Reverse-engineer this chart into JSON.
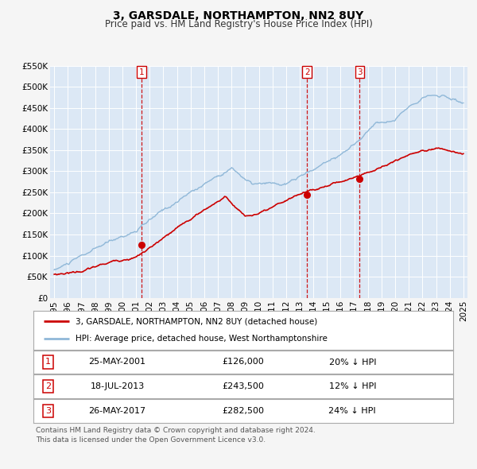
{
  "title": "3, GARSDALE, NORTHAMPTON, NN2 8UY",
  "subtitle": "Price paid vs. HM Land Registry's House Price Index (HPI)",
  "bg_color": "#dce8f5",
  "fig_bg_color": "#f5f5f5",
  "grid_color": "#ffffff",
  "red_line_color": "#cc0000",
  "blue_line_color": "#90b8d8",
  "marker_color": "#cc0000",
  "dashed_line_color": "#cc0000",
  "ylim": [
    0,
    550000
  ],
  "ytick_labels": [
    "£0",
    "£50K",
    "£100K",
    "£150K",
    "£200K",
    "£250K",
    "£300K",
    "£350K",
    "£400K",
    "£450K",
    "£500K",
    "£550K"
  ],
  "ytick_values": [
    0,
    50000,
    100000,
    150000,
    200000,
    250000,
    300000,
    350000,
    400000,
    450000,
    500000,
    550000
  ],
  "vline_dates": [
    2001.39,
    2013.54,
    2017.4
  ],
  "vline_labels": [
    "1",
    "2",
    "3"
  ],
  "sale_dates": [
    2001.39,
    2013.54,
    2017.4
  ],
  "sale_prices": [
    126000,
    243500,
    282500
  ],
  "legend_red_label": "3, GARSDALE, NORTHAMPTON, NN2 8UY (detached house)",
  "legend_blue_label": "HPI: Average price, detached house, West Northamptonshire",
  "table_rows": [
    {
      "num": "1",
      "date": "25-MAY-2001",
      "price": "£126,000",
      "pct": "20% ↓ HPI"
    },
    {
      "num": "2",
      "date": "18-JUL-2013",
      "price": "£243,500",
      "pct": "12% ↓ HPI"
    },
    {
      "num": "3",
      "date": "26-MAY-2017",
      "price": "£282,500",
      "pct": "24% ↓ HPI"
    }
  ],
  "footer_text": "Contains HM Land Registry data © Crown copyright and database right 2024.\nThis data is licensed under the Open Government Licence v3.0.",
  "xtick_years": [
    1995,
    1996,
    1997,
    1998,
    1999,
    2000,
    2001,
    2002,
    2003,
    2004,
    2005,
    2006,
    2007,
    2008,
    2009,
    2010,
    2011,
    2012,
    2013,
    2014,
    2015,
    2016,
    2017,
    2018,
    2019,
    2020,
    2021,
    2022,
    2023,
    2024,
    2025
  ],
  "xlim": [
    1994.7,
    2025.3
  ]
}
